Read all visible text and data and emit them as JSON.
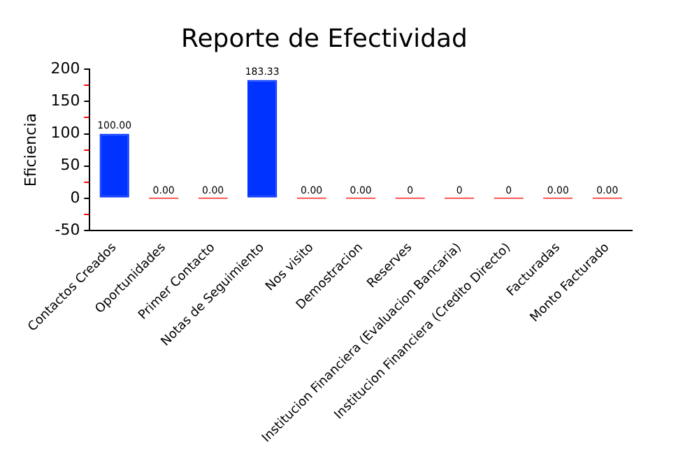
{
  "chart_data": {
    "type": "bar",
    "title": "Reporte de Efectividad",
    "ylabel": "Eficiencia",
    "categories": [
      "Contactos Creados",
      "Oportunidades",
      "Primer Contacto",
      "Notas de Seguimiento",
      "Nos visito",
      "Demostracion",
      "Reserves",
      "Institucion Financiera (Evaluacion Bancaria)",
      "Institucion Financiera (Credito Directo)",
      "Facturadas",
      "Monto Facturado"
    ],
    "values": [
      100,
      0,
      0,
      183.33,
      0,
      0,
      0,
      0,
      0,
      0,
      0
    ],
    "colors": [
      "#0033ff",
      "#ff3333",
      "#ff3333",
      "#0033ff",
      "#ff3333",
      "#ff3333",
      "#ff3333",
      "#ff3333",
      "#ff3333",
      "#ff3333",
      "#ff3333"
    ],
    "value_labels": [
      "100.00",
      "0.00",
      "0.00",
      "183.33",
      "0.00",
      "0.00",
      "0",
      "0",
      "0",
      "0.00",
      "0.00"
    ],
    "ylim": [
      -50,
      200
    ],
    "yticks": [
      -50,
      {
        "value": -25,
        "label": null
      },
      0,
      {
        "value": 25,
        "label": null
      },
      50,
      {
        "value": 75,
        "label": null
      },
      100,
      {
        "value": 125,
        "label": null
      },
      150,
      {
        "value": 175,
        "label": null
      },
      200
    ],
    "grid": false,
    "legend": false
  }
}
